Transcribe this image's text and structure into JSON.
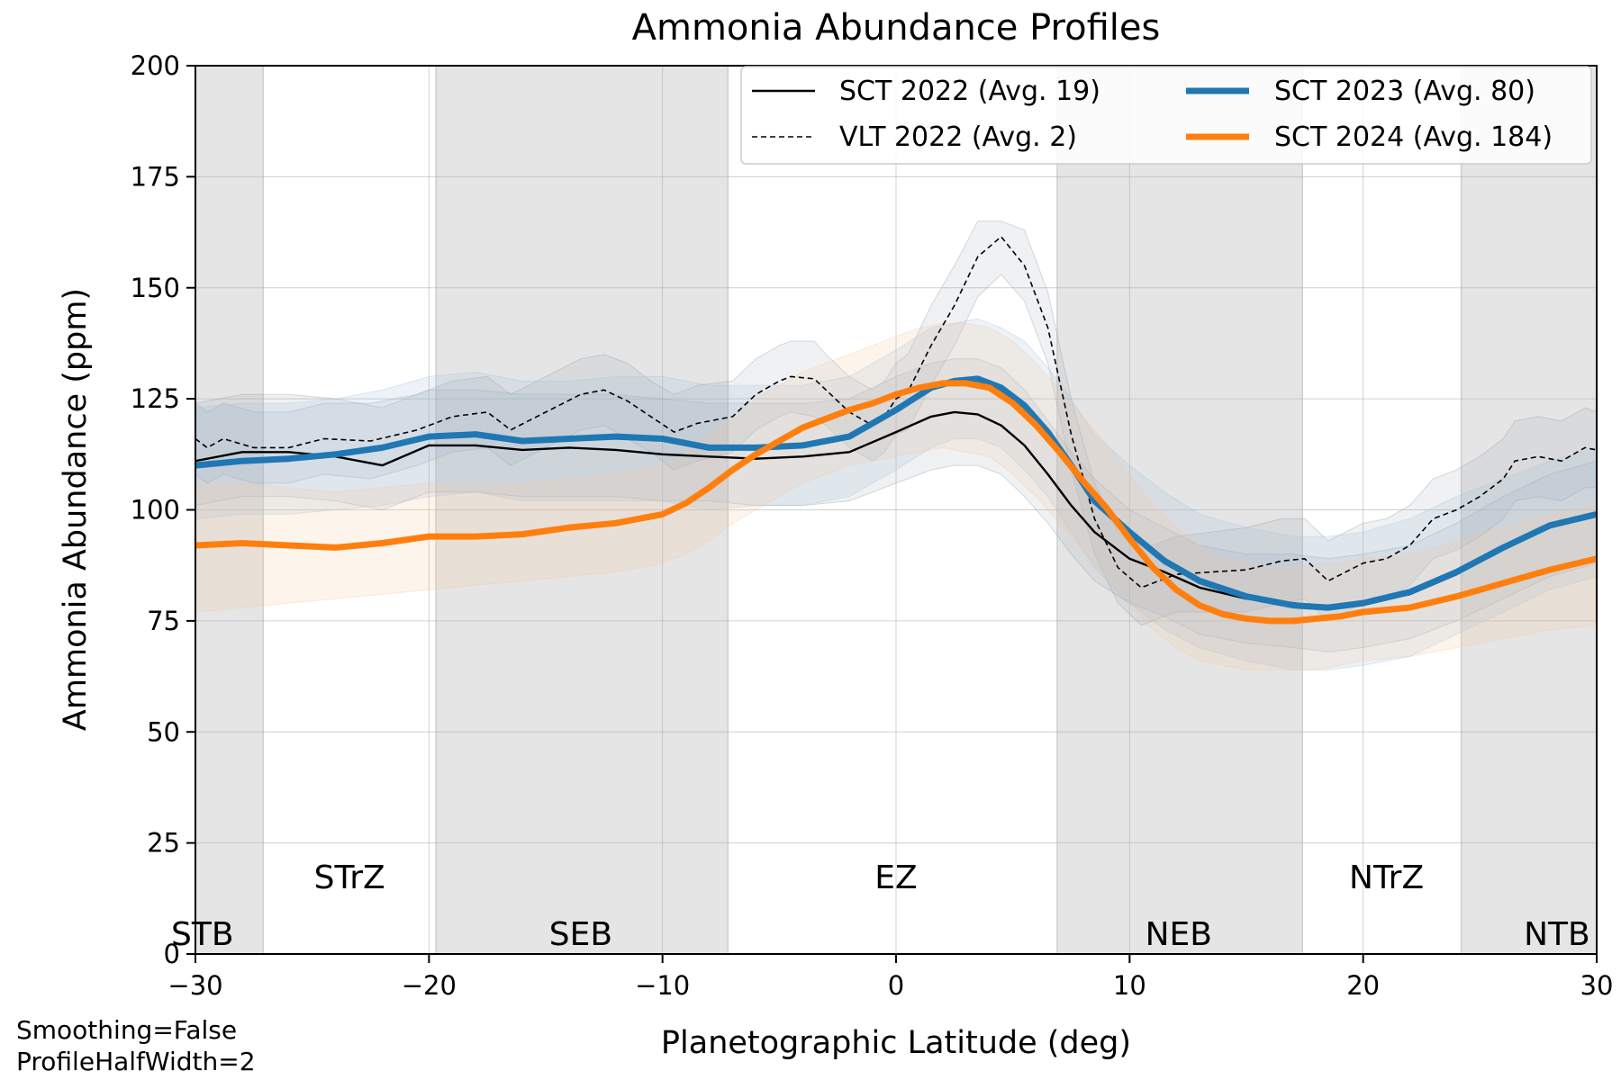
{
  "chart_data": {
    "type": "line",
    "title": "Ammonia Abundance Profiles",
    "xlabel": "Planetographic Latitude (deg)",
    "ylabel": "Ammonia Abundance (ppm)",
    "xlim": [
      -30,
      30
    ],
    "ylim": [
      0,
      200
    ],
    "x_ticks": [
      -30,
      -20,
      -10,
      0,
      10,
      20,
      30
    ],
    "x_tick_labels": [
      "−30",
      "−20",
      "−10",
      "0",
      "10",
      "20",
      "30"
    ],
    "y_ticks": [
      0,
      25,
      50,
      75,
      100,
      125,
      150,
      175,
      200
    ],
    "y_tick_labels": [
      "0",
      "25",
      "50",
      "75",
      "100",
      "125",
      "150",
      "175",
      "200"
    ],
    "grid": true,
    "legend_position": "top-right",
    "bands": [
      {
        "name": "STB",
        "range": [
          -30,
          -27.1
        ],
        "label_position": "bottom"
      },
      {
        "name": "SEB",
        "range": [
          -19.7,
          -7.2
        ],
        "label_position": "bottom"
      },
      {
        "name": "NEB",
        "range": [
          6.9,
          17.4
        ],
        "label_position": "bottom"
      },
      {
        "name": "NTB",
        "range": [
          24.2,
          30
        ],
        "label_position": "bottom"
      }
    ],
    "zone_labels": [
      {
        "name": "STrZ",
        "x": -23.4
      },
      {
        "name": "EZ",
        "x": 0
      },
      {
        "name": "NTrZ",
        "x": 21
      }
    ],
    "band_labels": [
      {
        "name": "STB",
        "x": -29.7
      },
      {
        "name": "SEB",
        "x": -13.5
      },
      {
        "name": "NEB",
        "x": 12.1
      },
      {
        "name": "NTB",
        "x": 28.3
      }
    ],
    "series": [
      {
        "name": "SCT 2022 (Avg. 19)",
        "color": "#000000",
        "style": "solid",
        "width": "thin",
        "x": [
          -30,
          -28,
          -26,
          -24,
          -22,
          -20,
          -18,
          -16,
          -14,
          -12,
          -10,
          -8,
          -6,
          -4,
          -2,
          0,
          1.5,
          2.5,
          3.5,
          4.5,
          5.5,
          6.5,
          7.5,
          8.5,
          10,
          11.5,
          13,
          15,
          17,
          18.5,
          20,
          22,
          24,
          26,
          28,
          30
        ],
        "y": [
          111,
          113,
          113,
          112,
          110,
          114.5,
          114.5,
          113.5,
          114,
          113.5,
          112.5,
          112,
          111.5,
          112,
          113,
          117.5,
          121,
          122,
          121.5,
          119,
          114.5,
          108,
          101,
          95,
          89,
          86,
          82.5,
          80,
          79,
          78,
          79,
          81,
          85.5,
          91.5,
          96.5,
          99
        ],
        "band_lower": [
          101,
          103,
          103,
          102,
          100,
          104,
          104,
          103,
          103,
          103,
          102,
          102,
          101,
          101,
          102,
          106,
          109,
          110,
          110,
          108,
          103,
          97,
          90,
          84,
          79,
          76,
          72,
          70,
          69,
          68,
          69,
          71,
          75,
          80,
          85,
          88
        ],
        "band_upper": [
          124,
          126,
          126,
          125,
          123,
          127,
          127,
          126,
          126,
          126,
          125,
          124,
          124,
          124,
          125,
          130,
          133,
          134,
          134,
          132,
          127,
          120,
          113,
          107,
          100,
          96,
          92,
          90,
          90,
          89,
          90,
          92,
          97,
          103,
          108,
          111
        ]
      },
      {
        "name": "VLT 2022 (Avg. 2)",
        "color": "#000000",
        "style": "dashed",
        "width": "thin",
        "x": [
          -30,
          -29.5,
          -28.8,
          -27.5,
          -26,
          -24.5,
          -22.5,
          -20.5,
          -19,
          -17.5,
          -16.5,
          -15,
          -13.5,
          -12.5,
          -11.5,
          -10.5,
          -9.5,
          -8.5,
          -7,
          -6,
          -5,
          -4.5,
          -3.5,
          -3,
          -2,
          -1,
          -0.5,
          0,
          0.5,
          1.5,
          2.5,
          3.5,
          4.5,
          5.5,
          6.5,
          7.5,
          8.5,
          9.5,
          10.5,
          12,
          13.5,
          15,
          16.5,
          17.5,
          18.5,
          20,
          21,
          22,
          23,
          24,
          25,
          26,
          26.5,
          27.5,
          28.5,
          29.5,
          30
        ],
        "y": [
          116,
          114,
          116,
          114,
          114,
          116,
          115.5,
          118,
          121,
          122,
          118,
          122,
          126,
          127,
          124.5,
          121,
          117.5,
          119.5,
          121,
          126,
          129,
          130,
          129.5,
          127,
          122,
          119,
          121,
          125,
          126.5,
          137,
          146,
          157,
          161.5,
          155,
          141,
          117,
          98,
          87,
          82.5,
          85.5,
          86,
          86.5,
          88.5,
          89,
          84,
          88,
          89,
          92,
          98,
          100,
          103,
          107,
          111,
          112,
          111,
          114,
          113.5
        ],
        "band_lower": [
          108,
          106,
          108,
          106,
          106,
          108,
          107,
          110,
          113,
          114,
          110,
          114,
          118,
          119,
          116,
          113,
          109,
          111,
          113,
          118,
          121,
          122,
          121,
          119,
          114,
          111,
          113,
          117,
          118,
          128,
          137,
          148,
          153,
          147,
          133,
          109,
          90,
          79,
          74,
          77,
          77,
          77,
          79,
          80,
          75,
          79,
          80,
          83,
          89,
          91,
          94,
          98,
          102,
          103,
          102,
          105,
          105
        ],
        "band_upper": [
          124,
          122,
          124,
          122,
          122,
          124,
          124,
          126,
          129,
          130,
          126,
          130,
          134,
          135,
          133,
          129,
          126,
          128,
          129,
          134,
          137,
          138,
          138,
          135,
          130,
          127,
          129,
          133,
          135,
          146,
          155,
          165,
          165,
          163,
          149,
          125,
          106,
          95,
          91,
          94,
          95,
          96,
          98,
          98,
          93,
          97,
          98,
          101,
          107,
          109,
          112,
          116,
          120,
          121,
          120,
          123,
          122
        ]
      },
      {
        "name": "SCT 2023 (Avg. 80)",
        "color": "#1f77b4",
        "style": "solid",
        "width": "thick",
        "x": [
          -30,
          -28,
          -26,
          -24,
          -22,
          -20,
          -18,
          -16,
          -14,
          -12,
          -10,
          -8,
          -6,
          -4,
          -2,
          0,
          1.5,
          2.5,
          3.5,
          4.5,
          5.5,
          6.5,
          7.5,
          8.5,
          10,
          11.5,
          13,
          15,
          17,
          18.5,
          20,
          22,
          24,
          26,
          28,
          30
        ],
        "y": [
          110,
          111,
          111.5,
          112.5,
          114,
          116.5,
          117,
          115.5,
          116,
          116.5,
          116,
          114,
          114,
          114.5,
          116.5,
          122.5,
          127.5,
          129,
          129.5,
          127.5,
          123.5,
          117.5,
          110,
          102,
          95,
          88.5,
          84,
          80.5,
          78.5,
          78,
          79,
          81.5,
          86,
          91.5,
          96.5,
          99
        ],
        "band_lower": [
          98,
          99,
          99,
          100,
          101,
          103,
          104,
          102,
          102,
          102,
          102,
          100,
          101,
          101,
          103,
          109,
          114,
          116,
          116,
          114,
          109,
          103,
          95,
          87,
          79,
          73,
          69,
          66,
          64,
          64,
          65,
          67,
          72,
          77,
          82,
          85
        ],
        "band_upper": [
          123,
          124,
          124,
          125,
          127,
          130,
          131,
          129,
          129,
          130,
          130,
          128,
          128,
          128,
          130,
          136,
          141,
          142,
          143,
          141,
          138,
          132,
          125,
          117,
          110,
          104,
          99,
          96,
          94,
          94,
          95,
          98,
          103,
          107,
          111,
          114
        ]
      },
      {
        "name": "SCT 2024 (Avg. 184)",
        "color": "#ff7f0e",
        "style": "solid",
        "width": "thick",
        "x": [
          -30,
          -28,
          -26,
          -24,
          -22,
          -20,
          -18,
          -16,
          -14,
          -12,
          -10,
          -9,
          -8,
          -7,
          -6,
          -5,
          -4,
          -3,
          -2,
          -1,
          0,
          1,
          2,
          3,
          4,
          5,
          6,
          7,
          8,
          9,
          10,
          11,
          12,
          13,
          14,
          15,
          16,
          17,
          18,
          19,
          20,
          22,
          24,
          26,
          28,
          30
        ],
        "y": [
          92,
          92.5,
          92,
          91.5,
          92.5,
          94,
          94,
          94.5,
          96,
          97,
          99,
          101.5,
          105,
          109,
          112.5,
          115.5,
          118.5,
          120.5,
          122.5,
          124,
          126,
          127.5,
          128.5,
          128.5,
          127.5,
          124,
          119,
          113,
          106.5,
          100.5,
          93.5,
          87,
          82,
          78.5,
          76.5,
          75.5,
          75,
          75,
          75.5,
          76,
          77,
          78,
          80.5,
          83.5,
          86.5,
          89
        ],
        "band_lower": [
          77,
          78,
          79,
          80,
          81,
          82,
          83,
          84,
          85,
          86,
          88,
          90,
          93,
          97,
          100,
          103,
          106,
          108,
          110,
          111,
          112,
          113,
          114,
          113,
          112,
          108,
          103,
          97,
          91,
          85,
          79,
          73,
          69,
          66,
          65,
          64,
          64,
          64,
          64,
          65,
          66,
          67,
          69,
          71,
          73,
          74
        ],
        "band_upper": [
          106,
          106,
          105,
          104,
          105,
          106,
          106,
          106,
          107,
          108,
          110,
          113,
          117,
          121,
          125,
          128,
          131,
          133,
          135,
          137,
          139,
          141,
          142,
          142,
          141,
          138,
          133,
          127,
          121,
          115,
          108,
          101,
          96,
          92,
          89,
          88,
          87,
          87,
          88,
          88,
          89,
          90,
          93,
          96,
          99,
          101
        ]
      }
    ],
    "footnotes": [
      "Smoothing=False",
      "ProfileHalfWidth=2"
    ]
  }
}
